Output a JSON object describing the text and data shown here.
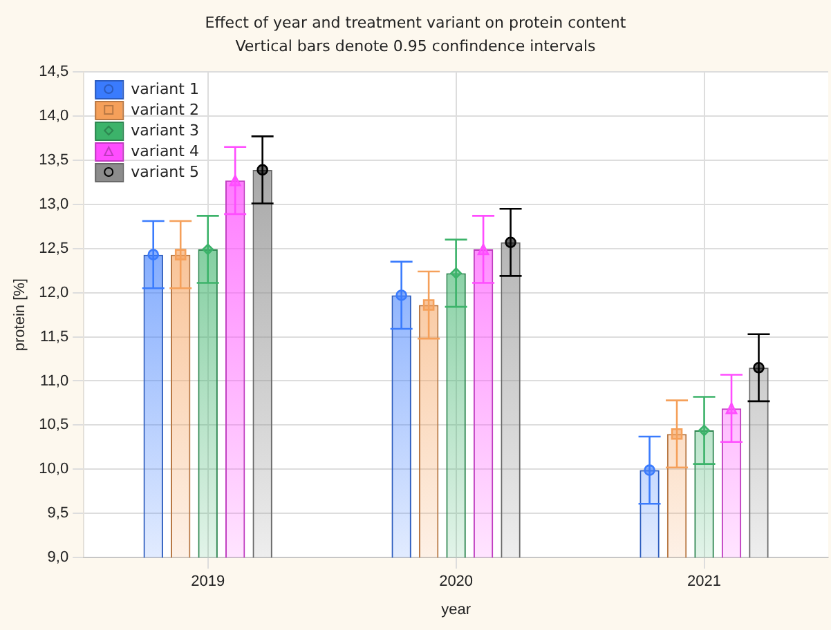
{
  "chart_data": {
    "type": "bar",
    "title": "Effect of year and treatment variant on protein content",
    "subtitle": "Vertical bars denote 0.95 confindence intervals",
    "xlabel": "year",
    "ylabel": "protein [%]",
    "categories": [
      "2019",
      "2020",
      "2021"
    ],
    "series": [
      {
        "name": "variant 1",
        "color": "#3a7bfd",
        "values": [
          12.43,
          11.97,
          9.99
        ],
        "errors": [
          0.38,
          0.38,
          0.38
        ]
      },
      {
        "name": "variant 2",
        "color": "#f5a05a",
        "values": [
          12.43,
          11.86,
          10.4
        ],
        "errors": [
          0.38,
          0.38,
          0.38
        ]
      },
      {
        "name": "variant 3",
        "color": "#3cb36a",
        "values": [
          12.49,
          12.22,
          10.44
        ],
        "errors": [
          0.38,
          0.38,
          0.38
        ]
      },
      {
        "name": "variant 4",
        "color": "#ff4dff",
        "values": [
          13.27,
          12.49,
          10.69
        ],
        "errors": [
          0.38,
          0.38,
          0.38
        ]
      },
      {
        "name": "variant 5",
        "color": "#8c8c8c",
        "values": [
          13.39,
          12.57,
          11.15
        ],
        "errors": [
          0.38,
          0.38,
          0.38
        ]
      },
      {
        "type": "scatter",
        "color": "#3a7bfd",
        "marker": "circle",
        "values": [
          12.43,
          11.97,
          9.99
        ]
      },
      {
        "type": "scatter",
        "color": "#f5a05a",
        "marker": "square",
        "values": [
          12.43,
          11.86,
          10.4
        ]
      },
      {
        "type": "scatter",
        "color": "#3cb36a",
        "marker": "diamond",
        "values": [
          12.49,
          12.22,
          10.44
        ]
      },
      {
        "type": "scatter",
        "color": "#ff4dff",
        "marker": "triangle",
        "values": [
          13.27,
          12.49,
          10.69
        ]
      },
      {
        "type": "scatter",
        "color": "#000000",
        "marker": "circle",
        "values": [
          13.39,
          12.57,
          11.15
        ]
      }
    ],
    "ylim": [
      9,
      14.5
    ],
    "yticks": [
      {
        "value": 9,
        "label": "9,0"
      },
      {
        "value": 9.5,
        "label": "9,5"
      },
      {
        "value": 10,
        "label": "10,0"
      },
      {
        "value": 10.5,
        "label": "10,5"
      },
      {
        "value": 11,
        "label": "11,0"
      },
      {
        "value": 11.5,
        "label": "11,5"
      },
      {
        "value": 12,
        "label": "12,0"
      },
      {
        "value": 12.5,
        "label": "12,5"
      },
      {
        "value": 13,
        "label": "13,0"
      },
      {
        "value": 13.5,
        "label": "13,5"
      },
      {
        "value": 14,
        "label": "14,0"
      },
      {
        "value": 14.5,
        "label": "14,5"
      }
    ],
    "grid": true,
    "legend": "top left"
  }
}
